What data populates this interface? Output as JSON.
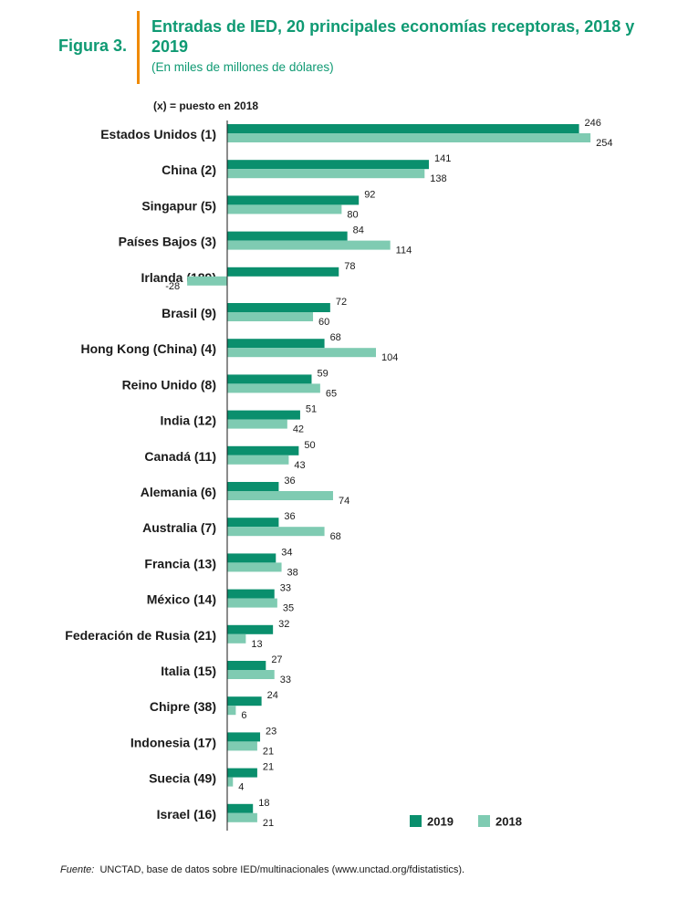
{
  "figure_label": "Figura 3.",
  "title": "Entradas de IED, 20 principales economías receptoras, 2018 y 2019",
  "subtitle": "(En miles de millones de dólares)",
  "note": "(x) = puesto en 2018",
  "source_label": "Fuente:",
  "source_text": "UNCTAD, base de datos sobre IED/multinacionales (www.unctad.org/fdistatistics).",
  "colors": {
    "accent": "#0f9a73",
    "series2019": "#0a8f6d",
    "series2018": "#7fcbb2",
    "orange": "#f08a00"
  },
  "chart_data": {
    "type": "bar",
    "orientation": "horizontal",
    "categories": [
      "Estados Unidos (1)",
      "China (2)",
      "Singapur (5)",
      "Países Bajos (3)",
      "Irlanda (189)",
      "Brasil (9)",
      "Hong Kong (China) (4)",
      "Reino Unido (8)",
      "India (12)",
      "Canadá (11)",
      "Alemania (6)",
      "Australia (7)",
      "Francia (13)",
      "México (14)",
      "Federación de Rusia (21)",
      "Italia (15)",
      "Chipre (38)",
      "Indonesia (17)",
      "Suecia (49)",
      "Israel (16)"
    ],
    "series": [
      {
        "name": "2019",
        "values": [
          246,
          141,
          92,
          84,
          78,
          72,
          68,
          59,
          51,
          50,
          36,
          36,
          34,
          33,
          32,
          27,
          24,
          23,
          21,
          18
        ]
      },
      {
        "name": "2018",
        "values": [
          254,
          138,
          80,
          114,
          -28,
          60,
          104,
          65,
          42,
          43,
          74,
          68,
          38,
          35,
          13,
          33,
          6,
          21,
          4,
          21
        ]
      }
    ],
    "legend_position": "bottom-right",
    "grid": false
  }
}
